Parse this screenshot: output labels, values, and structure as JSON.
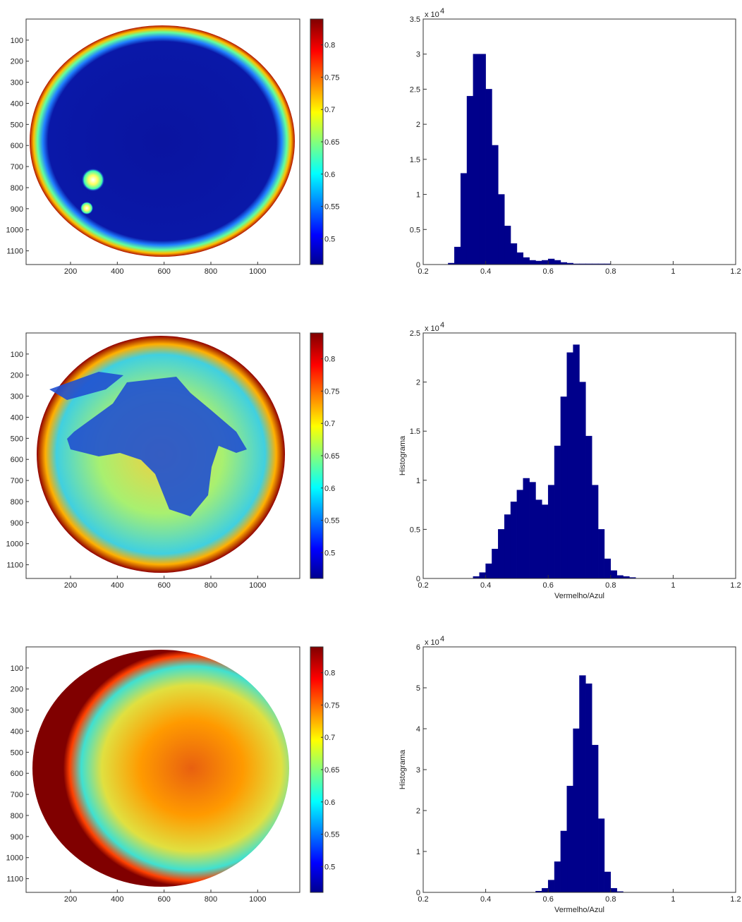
{
  "chart_data": [
    {
      "type": "image",
      "xlim": [
        10,
        1180
      ],
      "ylim": [
        0,
        1165
      ],
      "y_reversed": true,
      "xticks": [
        200,
        400,
        600,
        800,
        1000
      ],
      "yticks": [
        100,
        200,
        300,
        400,
        500,
        600,
        700,
        800,
        900,
        1000,
        1100
      ],
      "colorbar": {
        "colormap": "jet",
        "clim": [
          0.46,
          0.84
        ],
        "ticks": [
          0.5,
          0.55,
          0.6,
          0.65,
          0.7,
          0.75,
          0.8
        ]
      }
    },
    {
      "type": "histogram",
      "color": "#00008b",
      "xlim": [
        0.2,
        1.2
      ],
      "ylim": [
        0,
        3.5
      ],
      "xticks": [
        0.2,
        0.4,
        0.6,
        0.8,
        1,
        1.2
      ],
      "yticks": [
        0,
        0.5,
        1,
        1.5,
        2,
        2.5,
        3,
        3.5
      ],
      "y_multiplier": {
        "text": "x 10",
        "exponent": "4"
      },
      "bins": [
        0.2,
        0.22,
        0.24,
        0.26,
        0.28,
        0.3,
        0.32,
        0.34,
        0.36,
        0.38,
        0.4,
        0.42,
        0.44,
        0.46,
        0.48,
        0.5,
        0.52,
        0.54,
        0.56,
        0.58,
        0.6,
        0.62,
        0.64,
        0.66,
        0.68,
        0.7,
        0.72,
        0.74,
        0.76,
        0.78,
        0.8,
        0.82,
        0.84,
        0.86,
        0.88,
        0.9,
        0.92,
        0.94,
        0.96,
        0.98,
        1,
        1.02,
        1.04,
        1.06,
        1.08,
        1.1,
        1.12,
        1.14,
        1.16,
        1.18,
        1.2
      ],
      "values": [
        0,
        0,
        0,
        0,
        0.02,
        0.25,
        1.3,
        2.4,
        3.0,
        3.0,
        2.5,
        1.7,
        1.0,
        0.55,
        0.3,
        0.17,
        0.1,
        0.06,
        0.05,
        0.06,
        0.08,
        0.06,
        0.03,
        0.02,
        0.01,
        0.01,
        0.01,
        0.01,
        0.01,
        0.01,
        0,
        0,
        0,
        0,
        0,
        0,
        0,
        0,
        0,
        0,
        0,
        0,
        0,
        0,
        0,
        0,
        0,
        0,
        0,
        0
      ]
    },
    {
      "type": "image",
      "xlim": [
        10,
        1180
      ],
      "ylim": [
        0,
        1165
      ],
      "y_reversed": true,
      "xticks": [
        200,
        400,
        600,
        800,
        1000
      ],
      "yticks": [
        100,
        200,
        300,
        400,
        500,
        600,
        700,
        800,
        900,
        1000,
        1100
      ],
      "colorbar": {
        "colormap": "jet",
        "clim": [
          0.46,
          0.84
        ],
        "ticks": [
          0.5,
          0.55,
          0.6,
          0.65,
          0.7,
          0.75,
          0.8
        ]
      }
    },
    {
      "type": "histogram",
      "color": "#00008b",
      "xlim": [
        0.2,
        1.2
      ],
      "ylim": [
        0,
        2.5
      ],
      "xticks": [
        0.2,
        0.4,
        0.6,
        0.8,
        1,
        1.2
      ],
      "yticks": [
        0,
        0.5,
        1,
        1.5,
        2,
        2.5
      ],
      "y_multiplier": {
        "text": "x 10",
        "exponent": "4"
      },
      "xlabel": "Vermelho/Azul",
      "ylabel": "Histograma",
      "bins": [
        0.2,
        0.22,
        0.24,
        0.26,
        0.28,
        0.3,
        0.32,
        0.34,
        0.36,
        0.38,
        0.4,
        0.42,
        0.44,
        0.46,
        0.48,
        0.5,
        0.52,
        0.54,
        0.56,
        0.58,
        0.6,
        0.62,
        0.64,
        0.66,
        0.68,
        0.7,
        0.72,
        0.74,
        0.76,
        0.78,
        0.8,
        0.82,
        0.84,
        0.86,
        0.88,
        0.9,
        0.92,
        0.94,
        0.96,
        0.98,
        1,
        1.02,
        1.04,
        1.06,
        1.08,
        1.1,
        1.12,
        1.14,
        1.16,
        1.18,
        1.2
      ],
      "values": [
        0,
        0,
        0,
        0,
        0,
        0,
        0,
        0,
        0.02,
        0.06,
        0.15,
        0.3,
        0.5,
        0.65,
        0.78,
        0.9,
        1.02,
        0.98,
        0.8,
        0.75,
        0.95,
        1.35,
        1.85,
        2.3,
        2.38,
        2.0,
        1.45,
        0.95,
        0.5,
        0.2,
        0.08,
        0.03,
        0.02,
        0.01,
        0,
        0,
        0,
        0,
        0,
        0,
        0,
        0,
        0,
        0,
        0,
        0,
        0,
        0,
        0,
        0
      ]
    },
    {
      "type": "image",
      "xlim": [
        10,
        1180
      ],
      "ylim": [
        0,
        1165
      ],
      "y_reversed": true,
      "xticks": [
        200,
        400,
        600,
        800,
        1000
      ],
      "yticks": [
        100,
        200,
        300,
        400,
        500,
        600,
        700,
        800,
        900,
        1000,
        1100
      ],
      "colorbar": {
        "colormap": "jet",
        "clim": [
          0.46,
          0.84
        ],
        "ticks": [
          0.5,
          0.55,
          0.6,
          0.65,
          0.7,
          0.75,
          0.8
        ]
      }
    },
    {
      "type": "histogram",
      "color": "#00008b",
      "xlim": [
        0.2,
        1.2
      ],
      "ylim": [
        0,
        6
      ],
      "xticks": [
        0.2,
        0.4,
        0.6,
        0.8,
        1,
        1.2
      ],
      "yticks": [
        0,
        1,
        2,
        3,
        4,
        5,
        6
      ],
      "y_multiplier": {
        "text": "x 10",
        "exponent": "4"
      },
      "xlabel": "Vermelho/Azul",
      "ylabel": "Histograma",
      "bins": [
        0.2,
        0.22,
        0.24,
        0.26,
        0.28,
        0.3,
        0.32,
        0.34,
        0.36,
        0.38,
        0.4,
        0.42,
        0.44,
        0.46,
        0.48,
        0.5,
        0.52,
        0.54,
        0.56,
        0.58,
        0.6,
        0.62,
        0.64,
        0.66,
        0.68,
        0.7,
        0.72,
        0.74,
        0.76,
        0.78,
        0.8,
        0.82,
        0.84,
        0.86,
        0.88,
        0.9,
        0.92,
        0.94,
        0.96,
        0.98,
        1,
        1.02,
        1.04,
        1.06,
        1.08,
        1.1,
        1.12,
        1.14,
        1.16,
        1.18,
        1.2
      ],
      "values": [
        0,
        0,
        0,
        0,
        0,
        0,
        0,
        0,
        0,
        0,
        0,
        0,
        0,
        0,
        0,
        0,
        0,
        0,
        0.03,
        0.1,
        0.3,
        0.75,
        1.5,
        2.6,
        4.0,
        5.3,
        5.1,
        3.6,
        1.8,
        0.5,
        0.1,
        0.02,
        0,
        0,
        0,
        0,
        0,
        0,
        0,
        0,
        0,
        0,
        0,
        0,
        0,
        0,
        0,
        0,
        0,
        0
      ]
    }
  ]
}
